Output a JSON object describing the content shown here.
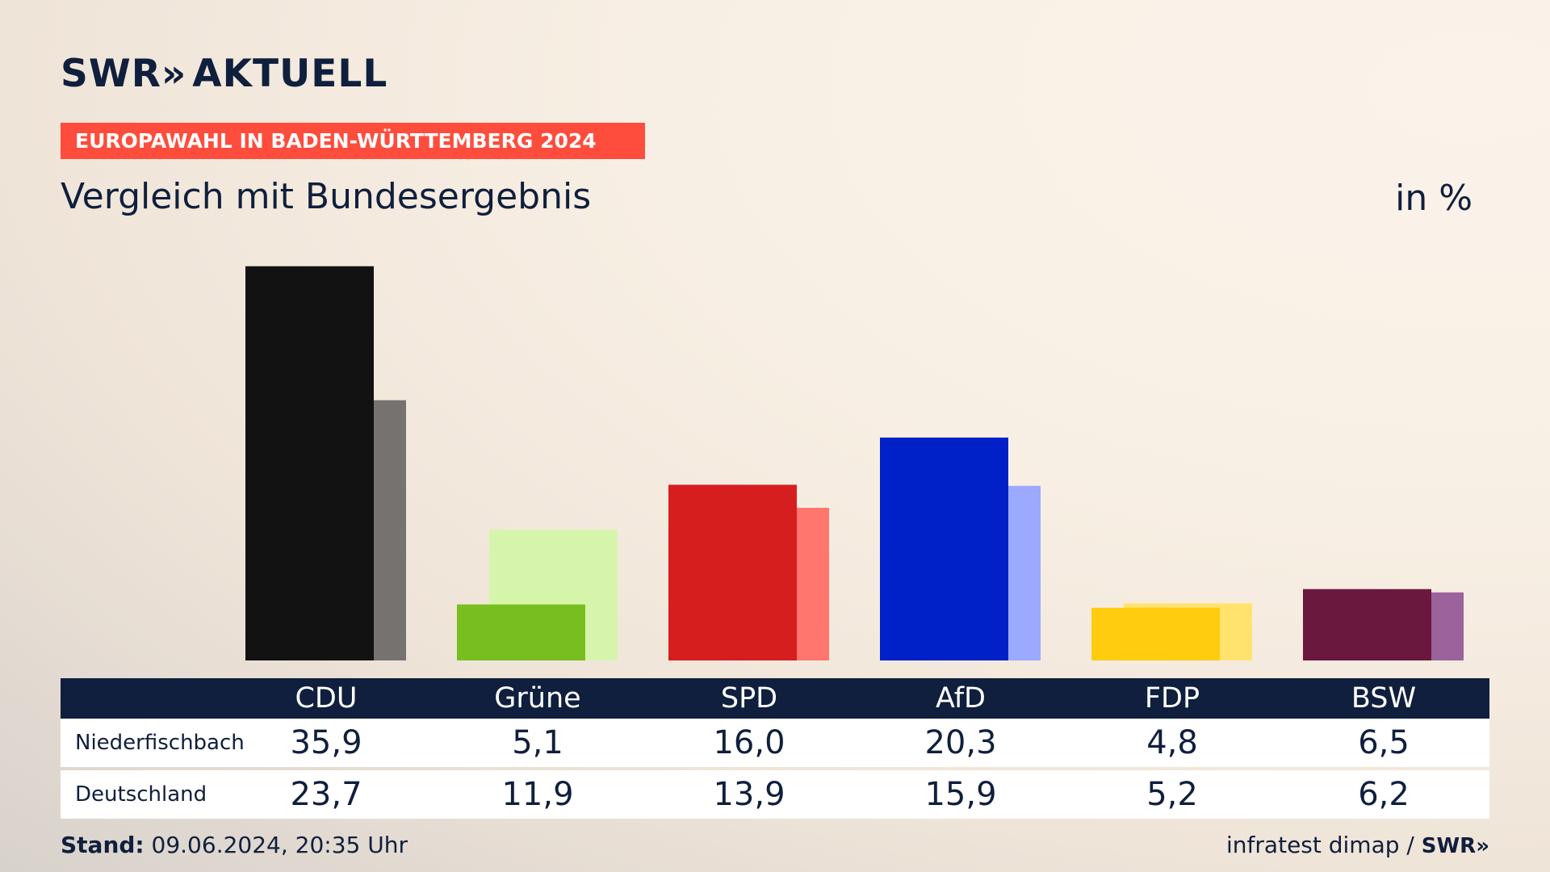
{
  "header": {
    "logo_text": "SWR",
    "logo_chevrons": "»",
    "logo_suffix": "AKTUELL",
    "kicker": "EUROPAWAHL IN BADEN-WÜRTTEMBERG 2024",
    "subtitle": "Vergleich mit Bundesergebnis",
    "unit": "in %"
  },
  "chart_data": {
    "type": "bar",
    "title": "Vergleich mit Bundesergebnis",
    "ylabel": "in %",
    "categories": [
      "CDU",
      "Grüne",
      "SPD",
      "AfD",
      "FDP",
      "BSW"
    ],
    "series": [
      {
        "name": "Niederfischbach",
        "values": [
          35.9,
          5.1,
          16.0,
          20.3,
          4.8,
          6.5
        ],
        "colors": [
          "#121212",
          "#78be1e",
          "#d61e1e",
          "#0021c8",
          "#ffcc0f",
          "#6b183e"
        ]
      },
      {
        "name": "Deutschland",
        "values": [
          23.7,
          11.9,
          13.9,
          15.9,
          5.2,
          6.2
        ],
        "colors": [
          "#757270",
          "#d6f5ab",
          "#ff766e",
          "#9ba9ff",
          "#ffe36e",
          "#9b629b"
        ]
      }
    ],
    "display_values": [
      [
        "35,9",
        "5,1",
        "16,0",
        "20,3",
        "4,8",
        "6,5"
      ],
      [
        "23,7",
        "11,9",
        "13,9",
        "15,9",
        "5,2",
        "6,2"
      ]
    ]
  },
  "table": {
    "headers": [
      "CDU",
      "Grüne",
      "SPD",
      "AfD",
      "FDP",
      "BSW"
    ],
    "rows": [
      {
        "label": "Niederfischbach",
        "values": [
          "35,9",
          "5,1",
          "16,0",
          "20,3",
          "4,8",
          "6,5"
        ]
      },
      {
        "label": "Deutschland",
        "values": [
          "23,7",
          "11,9",
          "13,9",
          "15,9",
          "5,2",
          "6,2"
        ]
      }
    ]
  },
  "footer": {
    "stand_label": "Stand:",
    "stand_value": "09.06.2024, 20:35 Uhr",
    "source": "infratest dimap /",
    "brand": "SWR»"
  }
}
